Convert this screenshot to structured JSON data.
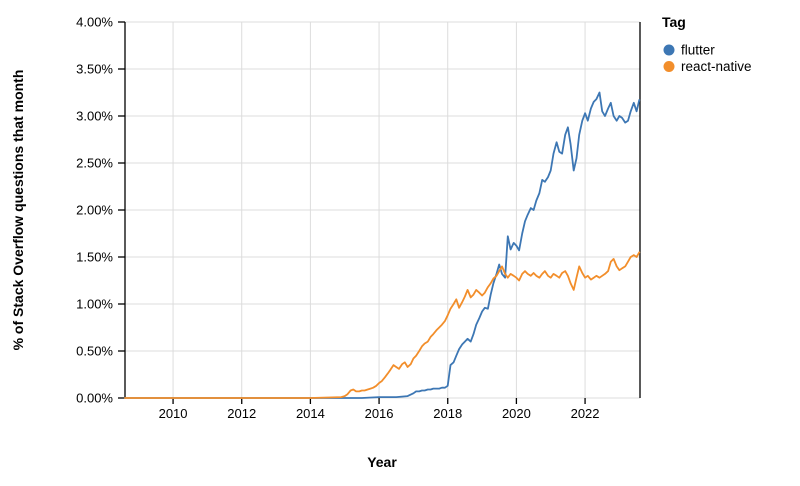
{
  "chart_data": {
    "type": "line",
    "title": "",
    "xlabel": "Year",
    "ylabel": "% of Stack Overflow questions that month",
    "legend_title": "Tag",
    "legend_position": "top-right",
    "grid": true,
    "xlim": [
      2008.6,
      2023.6
    ],
    "ylim": [
      0,
      4
    ],
    "x_ticks": [
      {
        "v": 2010,
        "label": "2010"
      },
      {
        "v": 2012,
        "label": "2012"
      },
      {
        "v": 2014,
        "label": "2014"
      },
      {
        "v": 2016,
        "label": "2016"
      },
      {
        "v": 2018,
        "label": "2018"
      },
      {
        "v": 2020,
        "label": "2020"
      },
      {
        "v": 2022,
        "label": "2022"
      }
    ],
    "y_ticks": [
      {
        "v": 0.0,
        "label": "0.00%"
      },
      {
        "v": 0.5,
        "label": "0.50%"
      },
      {
        "v": 1.0,
        "label": "1.00%"
      },
      {
        "v": 1.5,
        "label": "1.50%"
      },
      {
        "v": 2.0,
        "label": "2.00%"
      },
      {
        "v": 2.5,
        "label": "2.50%"
      },
      {
        "v": 3.0,
        "label": "3.00%"
      },
      {
        "v": 3.5,
        "label": "3.50%"
      },
      {
        "v": 4.0,
        "label": "4.00%"
      }
    ],
    "colors": {
      "flutter": "#3d77b4",
      "react_native": "#f28e2b",
      "gridline": "#dcdcdc",
      "axis": "#000000"
    },
    "series": [
      {
        "name": "flutter",
        "color": "#3d77b4",
        "points": [
          [
            2008.6,
            0
          ],
          [
            2010,
            0
          ],
          [
            2011,
            0
          ],
          [
            2012,
            0
          ],
          [
            2013,
            0
          ],
          [
            2014,
            0
          ],
          [
            2015,
            0
          ],
          [
            2015.5,
            0
          ],
          [
            2016.0,
            0.01
          ],
          [
            2016.5,
            0.01
          ],
          [
            2016.83,
            0.02
          ],
          [
            2017.0,
            0.05
          ],
          [
            2017.08,
            0.07
          ],
          [
            2017.17,
            0.07
          ],
          [
            2017.25,
            0.08
          ],
          [
            2017.33,
            0.08
          ],
          [
            2017.42,
            0.09
          ],
          [
            2017.5,
            0.09
          ],
          [
            2017.58,
            0.1
          ],
          [
            2017.67,
            0.1
          ],
          [
            2017.75,
            0.1
          ],
          [
            2017.83,
            0.11
          ],
          [
            2017.92,
            0.11
          ],
          [
            2018.0,
            0.13
          ],
          [
            2018.08,
            0.35
          ],
          [
            2018.17,
            0.38
          ],
          [
            2018.25,
            0.45
          ],
          [
            2018.33,
            0.52
          ],
          [
            2018.42,
            0.57
          ],
          [
            2018.5,
            0.6
          ],
          [
            2018.58,
            0.63
          ],
          [
            2018.67,
            0.6
          ],
          [
            2018.75,
            0.68
          ],
          [
            2018.83,
            0.78
          ],
          [
            2018.92,
            0.85
          ],
          [
            2019.0,
            0.92
          ],
          [
            2019.08,
            0.96
          ],
          [
            2019.17,
            0.95
          ],
          [
            2019.25,
            1.1
          ],
          [
            2019.33,
            1.22
          ],
          [
            2019.42,
            1.32
          ],
          [
            2019.5,
            1.42
          ],
          [
            2019.58,
            1.32
          ],
          [
            2019.67,
            1.28
          ],
          [
            2019.75,
            1.72
          ],
          [
            2019.83,
            1.58
          ],
          [
            2019.92,
            1.65
          ],
          [
            2020.0,
            1.62
          ],
          [
            2020.08,
            1.57
          ],
          [
            2020.17,
            1.75
          ],
          [
            2020.25,
            1.88
          ],
          [
            2020.33,
            1.95
          ],
          [
            2020.42,
            2.02
          ],
          [
            2020.5,
            2.0
          ],
          [
            2020.58,
            2.1
          ],
          [
            2020.67,
            2.18
          ],
          [
            2020.75,
            2.32
          ],
          [
            2020.83,
            2.3
          ],
          [
            2020.92,
            2.35
          ],
          [
            2021.0,
            2.42
          ],
          [
            2021.08,
            2.6
          ],
          [
            2021.17,
            2.72
          ],
          [
            2021.25,
            2.62
          ],
          [
            2021.33,
            2.6
          ],
          [
            2021.42,
            2.8
          ],
          [
            2021.5,
            2.88
          ],
          [
            2021.58,
            2.7
          ],
          [
            2021.67,
            2.42
          ],
          [
            2021.75,
            2.55
          ],
          [
            2021.83,
            2.8
          ],
          [
            2021.92,
            2.95
          ],
          [
            2022.0,
            3.03
          ],
          [
            2022.08,
            2.95
          ],
          [
            2022.17,
            3.08
          ],
          [
            2022.25,
            3.15
          ],
          [
            2022.33,
            3.18
          ],
          [
            2022.42,
            3.25
          ],
          [
            2022.5,
            3.05
          ],
          [
            2022.58,
            3.0
          ],
          [
            2022.67,
            3.08
          ],
          [
            2022.75,
            3.14
          ],
          [
            2022.83,
            3.0
          ],
          [
            2022.92,
            2.95
          ],
          [
            2023.0,
            3.0
          ],
          [
            2023.08,
            2.98
          ],
          [
            2023.17,
            2.93
          ],
          [
            2023.25,
            2.95
          ],
          [
            2023.33,
            3.05
          ],
          [
            2023.42,
            3.14
          ],
          [
            2023.5,
            3.05
          ],
          [
            2023.58,
            3.17
          ]
        ]
      },
      {
        "name": "react-native",
        "color": "#f28e2b",
        "points": [
          [
            2008.6,
            0
          ],
          [
            2010,
            0
          ],
          [
            2012,
            0
          ],
          [
            2014,
            0
          ],
          [
            2014.9,
            0.01
          ],
          [
            2015.0,
            0.02
          ],
          [
            2015.08,
            0.04
          ],
          [
            2015.17,
            0.08
          ],
          [
            2015.25,
            0.09
          ],
          [
            2015.33,
            0.07
          ],
          [
            2015.42,
            0.07
          ],
          [
            2015.5,
            0.08
          ],
          [
            2015.58,
            0.08
          ],
          [
            2015.67,
            0.09
          ],
          [
            2015.75,
            0.1
          ],
          [
            2015.83,
            0.11
          ],
          [
            2015.92,
            0.13
          ],
          [
            2016.0,
            0.16
          ],
          [
            2016.08,
            0.18
          ],
          [
            2016.17,
            0.22
          ],
          [
            2016.25,
            0.26
          ],
          [
            2016.33,
            0.3
          ],
          [
            2016.42,
            0.35
          ],
          [
            2016.5,
            0.33
          ],
          [
            2016.58,
            0.31
          ],
          [
            2016.67,
            0.36
          ],
          [
            2016.75,
            0.38
          ],
          [
            2016.83,
            0.33
          ],
          [
            2016.92,
            0.36
          ],
          [
            2017.0,
            0.42
          ],
          [
            2017.08,
            0.45
          ],
          [
            2017.17,
            0.5
          ],
          [
            2017.25,
            0.55
          ],
          [
            2017.33,
            0.58
          ],
          [
            2017.42,
            0.6
          ],
          [
            2017.5,
            0.65
          ],
          [
            2017.58,
            0.68
          ],
          [
            2017.67,
            0.72
          ],
          [
            2017.75,
            0.75
          ],
          [
            2017.83,
            0.78
          ],
          [
            2017.92,
            0.82
          ],
          [
            2018.0,
            0.88
          ],
          [
            2018.08,
            0.95
          ],
          [
            2018.17,
            1.0
          ],
          [
            2018.25,
            1.05
          ],
          [
            2018.33,
            0.96
          ],
          [
            2018.42,
            1.02
          ],
          [
            2018.5,
            1.08
          ],
          [
            2018.58,
            1.15
          ],
          [
            2018.67,
            1.07
          ],
          [
            2018.75,
            1.1
          ],
          [
            2018.83,
            1.15
          ],
          [
            2018.92,
            1.12
          ],
          [
            2019.0,
            1.09
          ],
          [
            2019.08,
            1.12
          ],
          [
            2019.17,
            1.18
          ],
          [
            2019.25,
            1.22
          ],
          [
            2019.33,
            1.27
          ],
          [
            2019.42,
            1.3
          ],
          [
            2019.5,
            1.35
          ],
          [
            2019.58,
            1.4
          ],
          [
            2019.67,
            1.32
          ],
          [
            2019.75,
            1.28
          ],
          [
            2019.83,
            1.32
          ],
          [
            2019.92,
            1.3
          ],
          [
            2020.0,
            1.28
          ],
          [
            2020.08,
            1.25
          ],
          [
            2020.17,
            1.32
          ],
          [
            2020.25,
            1.35
          ],
          [
            2020.33,
            1.32
          ],
          [
            2020.42,
            1.3
          ],
          [
            2020.5,
            1.33
          ],
          [
            2020.58,
            1.3
          ],
          [
            2020.67,
            1.28
          ],
          [
            2020.75,
            1.32
          ],
          [
            2020.83,
            1.35
          ],
          [
            2020.92,
            1.3
          ],
          [
            2021.0,
            1.28
          ],
          [
            2021.08,
            1.32
          ],
          [
            2021.17,
            1.3
          ],
          [
            2021.25,
            1.28
          ],
          [
            2021.33,
            1.33
          ],
          [
            2021.42,
            1.35
          ],
          [
            2021.5,
            1.3
          ],
          [
            2021.58,
            1.22
          ],
          [
            2021.67,
            1.15
          ],
          [
            2021.75,
            1.28
          ],
          [
            2021.83,
            1.4
          ],
          [
            2021.92,
            1.33
          ],
          [
            2022.0,
            1.28
          ],
          [
            2022.08,
            1.3
          ],
          [
            2022.17,
            1.26
          ],
          [
            2022.25,
            1.28
          ],
          [
            2022.33,
            1.3
          ],
          [
            2022.42,
            1.28
          ],
          [
            2022.5,
            1.3
          ],
          [
            2022.58,
            1.32
          ],
          [
            2022.67,
            1.35
          ],
          [
            2022.75,
            1.45
          ],
          [
            2022.83,
            1.48
          ],
          [
            2022.92,
            1.4
          ],
          [
            2023.0,
            1.36
          ],
          [
            2023.08,
            1.38
          ],
          [
            2023.17,
            1.4
          ],
          [
            2023.25,
            1.45
          ],
          [
            2023.33,
            1.5
          ],
          [
            2023.42,
            1.52
          ],
          [
            2023.5,
            1.5
          ],
          [
            2023.58,
            1.55
          ]
        ]
      }
    ]
  }
}
